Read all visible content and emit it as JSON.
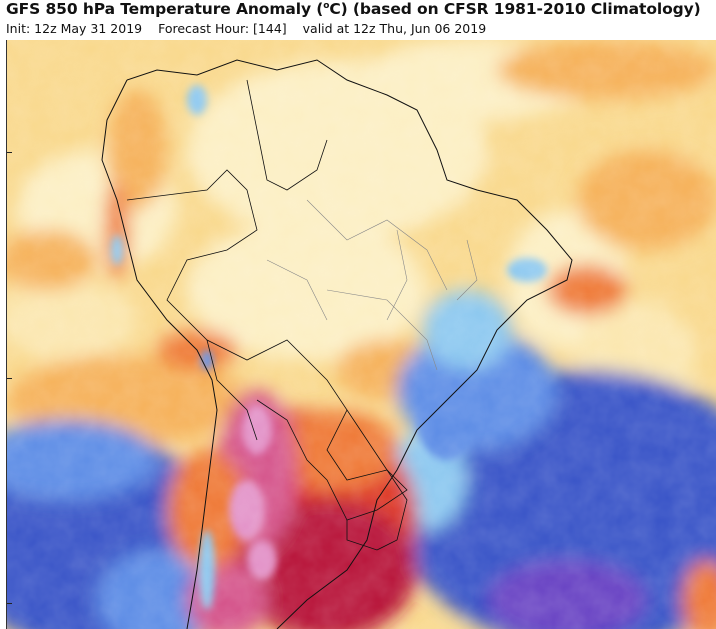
{
  "header": {
    "title_main": "GFS 850 hPa Temperature Anomaly (",
    "title_deg": "o",
    "title_rest": "C) (based on CFSR 1981-2010 Climatology)",
    "init": "Init: 12z May 31 2019",
    "forecast_hour": "Forecast Hour: [144]",
    "valid": "valid at 12z Thu, Jun 06 2019"
  },
  "map": {
    "region": "South America",
    "colors": {
      "deep_cold": "#3b56c8",
      "cold": "#5f8ee6",
      "cool": "#8ec9f0",
      "near_zero_cool": "#d8eefa",
      "near_zero_warm": "#fcefc4",
      "mild_warm": "#f9d98e",
      "warm": "#f6b25c",
      "hot": "#ef7a38",
      "very_hot": "#de3a2a",
      "extreme": "#b8123a",
      "extreme_pink": "#d5578c",
      "ultra_pink": "#e394c9",
      "violet": "#6a45c4"
    }
  }
}
